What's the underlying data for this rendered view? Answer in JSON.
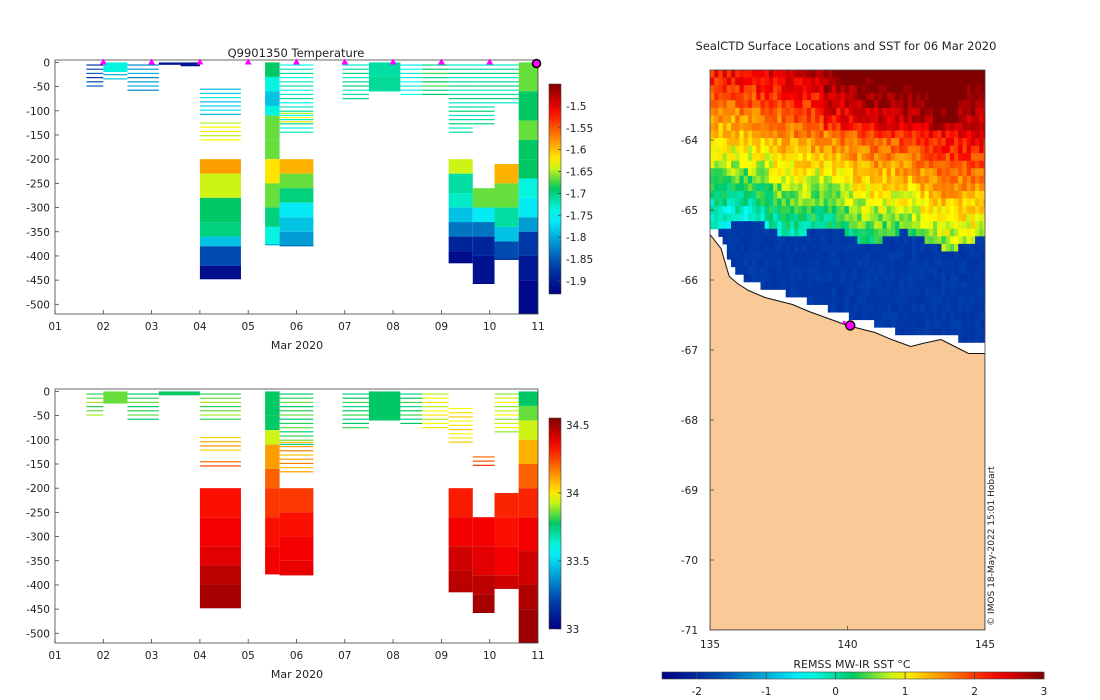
{
  "chart_data": [
    {
      "type": "heatmap",
      "title": "Q9901350  Temperature",
      "xlabel": "Mar 2020",
      "ylabel": "",
      "x_ticks": [
        "01",
        "02",
        "03",
        "04",
        "05",
        "06",
        "07",
        "08",
        "09",
        "10",
        "11"
      ],
      "xlim": [
        1,
        11
      ],
      "y_ticks": [
        0,
        -50,
        -100,
        -150,
        -200,
        -250,
        -300,
        -350,
        -400,
        -450,
        -500
      ],
      "ylim": [
        -520,
        5
      ],
      "colorbar": {
        "min": -1.93,
        "max": -1.45,
        "ticks": [
          -1.5,
          -1.55,
          -1.6,
          -1.65,
          -1.7,
          -1.75,
          -1.8,
          -1.85,
          -1.9
        ]
      },
      "profile_markers_days": [
        2,
        3,
        4,
        5,
        6,
        7,
        8,
        9,
        10,
        11
      ],
      "profiles": [
        {
          "t0": 1.65,
          "t1": 2.0,
          "sparse": true,
          "c": 0.15,
          "from": 0,
          "to": -50
        },
        {
          "t0": 2.0,
          "t1": 2.5,
          "sparse": false,
          "c": 0.4,
          "from": 0,
          "to": -20
        },
        {
          "t0": 2.0,
          "t1": 2.5,
          "sparse": true,
          "c": 0.3,
          "from": -20,
          "to": -40
        },
        {
          "t0": 2.5,
          "t1": 3.15,
          "sparse": true,
          "c": 0.25,
          "from": 0,
          "to": -62
        },
        {
          "t0": 3.15,
          "t1": 3.6,
          "sparse": false,
          "c": 0.05,
          "from": 0,
          "to": -5
        },
        {
          "t0": 3.6,
          "t1": 4.0,
          "sparse": false,
          "c": 0.05,
          "from": 0,
          "to": -8
        },
        {
          "t0": 4.0,
          "t1": 4.85,
          "sparse": true,
          "c": 0.32,
          "from": -50,
          "to": -110
        },
        {
          "t0": 4.0,
          "t1": 4.85,
          "sparse": true,
          "c": 0.62,
          "from": -120,
          "to": -160
        },
        {
          "t0": 4.0,
          "t1": 4.85,
          "grad": [
            [
              -200,
              0.72
            ],
            [
              -230,
              0.6
            ],
            [
              -280,
              0.5
            ],
            [
              -330,
              0.48
            ],
            [
              -360,
              0.3
            ],
            [
              -380,
              0.15
            ],
            [
              -420,
              0.03
            ],
            [
              -448,
              0.02
            ]
          ]
        },
        {
          "t0": 5.35,
          "t1": 5.65,
          "grad": [
            [
              0,
              0.5
            ],
            [
              -30,
              0.4
            ],
            [
              -60,
              0.3
            ],
            [
              -90,
              0.4
            ],
            [
              -110,
              0.55
            ],
            [
              -160,
              0.55
            ],
            [
              -200,
              0.65
            ],
            [
              -250,
              0.55
            ],
            [
              -300,
              0.48
            ],
            [
              -340,
              0.4
            ],
            [
              -378,
              0.25
            ]
          ]
        },
        {
          "t0": 5.65,
          "t1": 6.35,
          "sparse": true,
          "c": 0.42,
          "from": 0,
          "to": -150
        },
        {
          "t0": 5.65,
          "t1": 6.35,
          "sparse": true,
          "c": 0.62,
          "from": -100,
          "to": -130
        },
        {
          "t0": 5.65,
          "t1": 6.35,
          "grad": [
            [
              -200,
              0.7
            ],
            [
              -230,
              0.55
            ],
            [
              -260,
              0.48
            ],
            [
              -290,
              0.35
            ],
            [
              -320,
              0.3
            ],
            [
              -350,
              0.25
            ],
            [
              -380,
              0.2
            ]
          ]
        },
        {
          "t0": 6.95,
          "t1": 7.5,
          "sparse": true,
          "c": 0.45,
          "from": 0,
          "to": -75
        },
        {
          "t0": 7.5,
          "t1": 8.15,
          "grad": [
            [
              0,
              0.45
            ],
            [
              -30,
              0.46
            ],
            [
              -60,
              0.44
            ]
          ]
        },
        {
          "t0": 8.15,
          "t1": 8.6,
          "sparse": true,
          "c": 0.38,
          "from": 0,
          "to": -72
        },
        {
          "t0": 8.6,
          "t1": 9.15,
          "sparse": true,
          "c": 0.5,
          "from": 0,
          "to": -65
        },
        {
          "t0": 9.15,
          "t1": 9.65,
          "sparse": true,
          "c": 0.45,
          "from": 0,
          "to": -150
        },
        {
          "t0": 9.15,
          "t1": 9.65,
          "grad": [
            [
              -200,
              0.6
            ],
            [
              -230,
              0.45
            ],
            [
              -270,
              0.42
            ],
            [
              -300,
              0.3
            ],
            [
              -330,
              0.2
            ],
            [
              -360,
              0.08
            ],
            [
              -390,
              0.03
            ],
            [
              -415,
              0.02
            ]
          ]
        },
        {
          "t0": 9.65,
          "t1": 10.1,
          "sparse": true,
          "c": 0.45,
          "from": 0,
          "to": -130
        },
        {
          "t0": 9.65,
          "t1": 10.1,
          "grad": [
            [
              -260,
              0.55
            ],
            [
              -300,
              0.35
            ],
            [
              -330,
              0.2
            ],
            [
              -360,
              0.08
            ],
            [
              -400,
              0.04
            ],
            [
              -458,
              0.02
            ]
          ]
        },
        {
          "t0": 10.1,
          "t1": 10.6,
          "sparse": true,
          "c": 0.45,
          "from": 0,
          "to": -90
        },
        {
          "t0": 10.1,
          "t1": 10.6,
          "grad": [
            [
              -210,
              0.7
            ],
            [
              -250,
              0.55
            ],
            [
              -300,
              0.45
            ],
            [
              -340,
              0.3
            ],
            [
              -370,
              0.15
            ],
            [
              -408,
              0.05
            ]
          ]
        },
        {
          "t0": 10.6,
          "t1": 11.0,
          "grad": [
            [
              0,
              0.55
            ],
            [
              -30,
              0.55
            ],
            [
              -60,
              0.5
            ],
            [
              -120,
              0.55
            ],
            [
              -160,
              0.5
            ],
            [
              -200,
              0.5
            ],
            [
              -240,
              0.4
            ],
            [
              -280,
              0.35
            ],
            [
              -320,
              0.25
            ],
            [
              -350,
              0.12
            ],
            [
              -400,
              0.05
            ],
            [
              -450,
              0.02
            ],
            [
              -520,
              0.01
            ]
          ]
        }
      ]
    },
    {
      "type": "heatmap",
      "title": "",
      "xlabel": "Mar 2020",
      "ylabel": "",
      "x_ticks": [
        "01",
        "02",
        "03",
        "04",
        "05",
        "06",
        "07",
        "08",
        "09",
        "10",
        "11"
      ],
      "xlim": [
        1,
        11
      ],
      "y_ticks": [
        0,
        -50,
        -100,
        -150,
        -200,
        -250,
        -300,
        -350,
        -400,
        -450,
        -500
      ],
      "ylim": [
        -520,
        5
      ],
      "colorbar": {
        "min": 33.0,
        "max": 34.55,
        "ticks": [
          34.5,
          34,
          33.5,
          33
        ]
      },
      "profiles": [
        {
          "t0": 1.65,
          "t1": 2.0,
          "sparse": true,
          "c": 0.55,
          "from": 0,
          "to": -50
        },
        {
          "t0": 2.0,
          "t1": 2.5,
          "sparse": false,
          "c": 0.55,
          "from": 0,
          "to": -25
        },
        {
          "t0": 2.5,
          "t1": 3.15,
          "sparse": true,
          "c": 0.52,
          "from": 0,
          "to": -62
        },
        {
          "t0": 3.15,
          "t1": 4.0,
          "sparse": false,
          "c": 0.5,
          "from": 0,
          "to": -8
        },
        {
          "t0": 4.0,
          "t1": 4.85,
          "sparse": true,
          "c": 0.55,
          "from": 0,
          "to": -60
        },
        {
          "t0": 4.0,
          "t1": 4.85,
          "sparse": true,
          "c": 0.7,
          "from": -90,
          "to": -125
        },
        {
          "t0": 4.0,
          "t1": 4.85,
          "sparse": true,
          "c": 0.8,
          "from": -140,
          "to": -160
        },
        {
          "t0": 4.0,
          "t1": 4.85,
          "grad": [
            [
              -200,
              0.86
            ],
            [
              -260,
              0.88
            ],
            [
              -320,
              0.9
            ],
            [
              -360,
              0.94
            ],
            [
              -400,
              0.96
            ],
            [
              -448,
              0.97
            ]
          ]
        },
        {
          "t0": 5.35,
          "t1": 5.65,
          "grad": [
            [
              0,
              0.5
            ],
            [
              -50,
              0.5
            ],
            [
              -80,
              0.6
            ],
            [
              -110,
              0.72
            ],
            [
              -160,
              0.78
            ],
            [
              -200,
              0.82
            ],
            [
              -260,
              0.86
            ],
            [
              -320,
              0.88
            ],
            [
              -378,
              0.9
            ]
          ]
        },
        {
          "t0": 5.65,
          "t1": 6.35,
          "sparse": true,
          "c": 0.52,
          "from": 0,
          "to": -110
        },
        {
          "t0": 5.65,
          "t1": 6.35,
          "sparse": true,
          "c": 0.72,
          "from": -100,
          "to": -170
        },
        {
          "t0": 5.65,
          "t1": 6.35,
          "grad": [
            [
              -200,
              0.82
            ],
            [
              -250,
              0.86
            ],
            [
              -300,
              0.88
            ],
            [
              -350,
              0.89
            ],
            [
              -380,
              0.9
            ]
          ]
        },
        {
          "t0": 6.95,
          "t1": 7.5,
          "sparse": true,
          "c": 0.5,
          "from": 0,
          "to": -80
        },
        {
          "t0": 7.5,
          "t1": 8.15,
          "grad": [
            [
              0,
              0.5
            ],
            [
              -60,
              0.5
            ]
          ]
        },
        {
          "t0": 8.15,
          "t1": 8.6,
          "sparse": true,
          "c": 0.5,
          "from": 0,
          "to": -72
        },
        {
          "t0": 8.6,
          "t1": 9.15,
          "sparse": true,
          "c": 0.62,
          "from": 0,
          "to": -80
        },
        {
          "t0": 9.15,
          "t1": 9.65,
          "sparse": true,
          "c": 0.65,
          "from": -30,
          "to": -110
        },
        {
          "t0": 9.15,
          "t1": 9.65,
          "grad": [
            [
              -200,
              0.85
            ],
            [
              -260,
              0.88
            ],
            [
              -320,
              0.92
            ],
            [
              -370,
              0.94
            ],
            [
              -415,
              0.96
            ]
          ]
        },
        {
          "t0": 9.65,
          "t1": 10.1,
          "sparse": true,
          "c": 0.8,
          "from": -130,
          "to": -160
        },
        {
          "t0": 9.65,
          "t1": 10.1,
          "grad": [
            [
              -260,
              0.88
            ],
            [
              -320,
              0.9
            ],
            [
              -380,
              0.94
            ],
            [
              -420,
              0.96
            ],
            [
              -458,
              0.98
            ]
          ]
        },
        {
          "t0": 10.1,
          "t1": 10.6,
          "sparse": true,
          "c": 0.6,
          "from": 0,
          "to": -90
        },
        {
          "t0": 10.1,
          "t1": 10.6,
          "grad": [
            [
              -210,
              0.84
            ],
            [
              -260,
              0.86
            ],
            [
              -320,
              0.88
            ],
            [
              -380,
              0.92
            ],
            [
              -408,
              0.94
            ]
          ]
        },
        {
          "t0": 10.6,
          "t1": 11.0,
          "grad": [
            [
              0,
              0.5
            ],
            [
              -30,
              0.55
            ],
            [
              -60,
              0.6
            ],
            [
              -100,
              0.7
            ],
            [
              -150,
              0.78
            ],
            [
              -200,
              0.84
            ],
            [
              -260,
              0.88
            ],
            [
              -330,
              0.92
            ],
            [
              -400,
              0.95
            ],
            [
              -450,
              0.97
            ],
            [
              -520,
              0.99
            ]
          ]
        }
      ]
    },
    {
      "type": "heatmap",
      "title": "SealCTD Surface Locations and SST for 06 Mar 2020",
      "xlabel": "",
      "ylabel": "",
      "xlim": [
        135,
        145
      ],
      "ylim": [
        -71,
        -63
      ],
      "x_ticks": [
        135,
        140,
        145
      ],
      "y_ticks": [
        -64,
        -65,
        -66,
        -67,
        -68,
        -69,
        -70,
        -71
      ],
      "colorbar": {
        "label": "REMSS MW-IR SST °C",
        "min": -2.5,
        "max": 3,
        "ticks": [
          -2,
          -1,
          0,
          1,
          2,
          3
        ]
      },
      "annotation": "© IMOS 18-May-2022 15:01 Hobart",
      "seal_location": {
        "lon": 140.1,
        "lat": -66.65
      },
      "land_color": "#f9c997"
    }
  ]
}
